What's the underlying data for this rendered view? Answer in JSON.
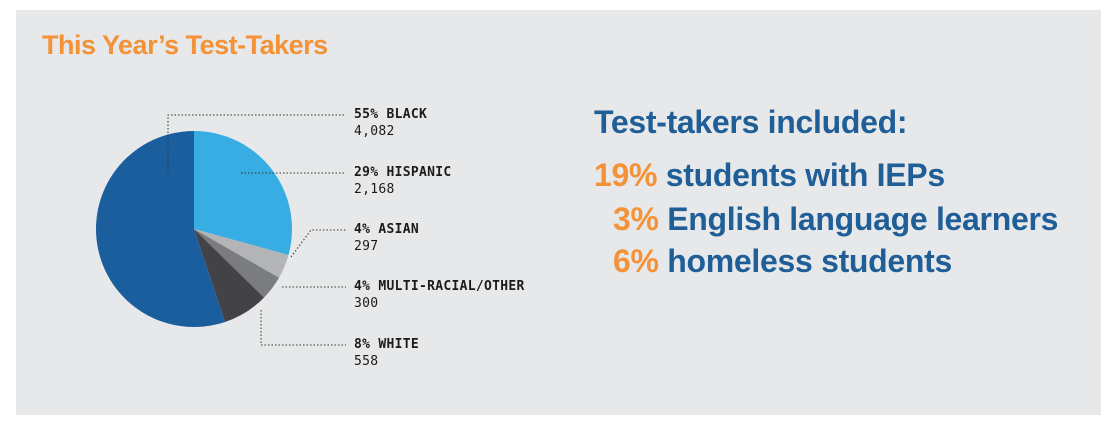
{
  "title": "This Year’s Test-Takers",
  "chart_data": {
    "type": "pie",
    "slices": [
      {
        "label": "55% BLACK",
        "percent": 55,
        "value": 4082,
        "value_label": "4,082",
        "color": "#1b5e9e"
      },
      {
        "label": "29% HISPANIC",
        "percent": 29,
        "value": 2168,
        "value_label": "2,168",
        "color": "#37ade3"
      },
      {
        "label": "4% ASIAN",
        "percent": 4,
        "value": 297,
        "value_label": "297",
        "color": "#b3b4b6"
      },
      {
        "label": "4% MULTI-RACIAL/OTHER",
        "percent": 4,
        "value": 300,
        "value_label": "300",
        "color": "#7b7c80"
      },
      {
        "label": "8% WHITE",
        "percent": 8,
        "value": 558,
        "value_label": "558",
        "color": "#434347"
      }
    ]
  },
  "stats": {
    "heading": "Test-takers included:",
    "items": [
      {
        "pct": "19%",
        "text": "students with IEPs"
      },
      {
        "pct": "3%",
        "text": "English language learners"
      },
      {
        "pct": "6%",
        "text": "homeless students"
      }
    ]
  },
  "colors": {
    "accent_orange": "#f39237",
    "accent_blue": "#1f5e97",
    "panel_bg": "#e7e8ea"
  }
}
